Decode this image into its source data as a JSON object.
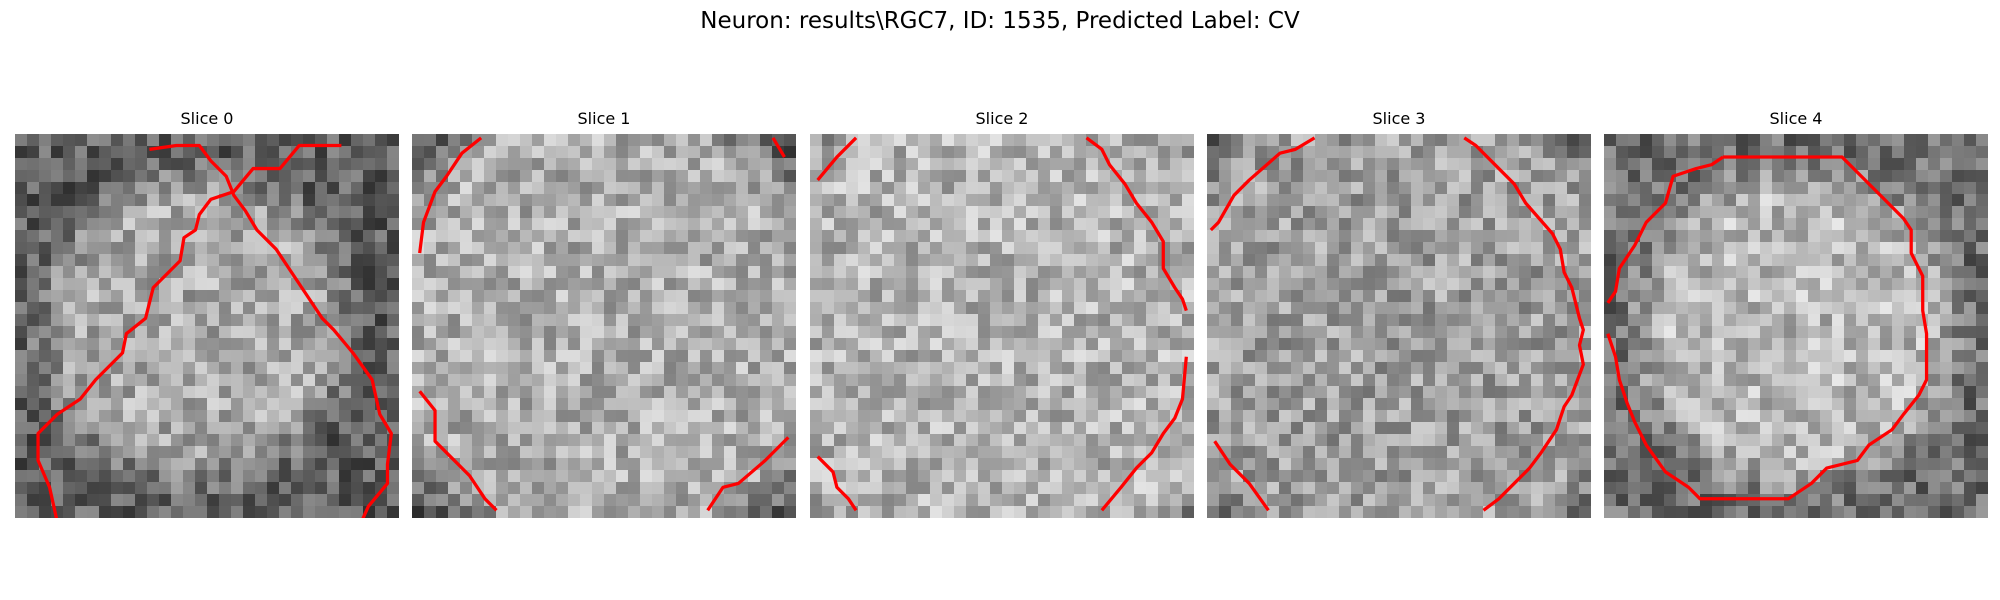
{
  "figure": {
    "suptitle": "Neuron: results\\RGC7, ID: 1535, Predicted Label: CV"
  },
  "contour_color": "#ff0000",
  "panels": [
    {
      "title": "Slice 0",
      "contours": [
        [
          [
            17,
            0.6
          ],
          [
            14.8,
            0.6
          ],
          [
            13.8,
            1.8
          ],
          [
            12.4,
            1.8
          ],
          [
            11.4,
            3
          ],
          [
            10.2,
            3.4
          ],
          [
            9.6,
            4.2
          ],
          [
            9.4,
            5
          ],
          [
            8.8,
            5.4
          ],
          [
            8.6,
            6.6
          ],
          [
            7.2,
            8
          ],
          [
            6.8,
            9.6
          ],
          [
            5.8,
            10.4
          ],
          [
            5.6,
            11.4
          ],
          [
            4.2,
            12.8
          ],
          [
            3.4,
            13.8
          ],
          [
            2.2,
            14.6
          ],
          [
            1.2,
            15.6
          ],
          [
            1.2,
            17
          ],
          [
            1.8,
            18.4
          ],
          [
            2.2,
            20.2
          ],
          [
            3.4,
            21.4
          ],
          [
            4.6,
            22.6
          ],
          [
            6.8,
            23.2
          ],
          [
            7.4,
            24
          ],
          [
            8.2,
            24.4
          ],
          [
            9.2,
            25
          ],
          [
            12,
            25
          ],
          [
            12.6,
            24.4
          ],
          [
            14.8,
            23.4
          ],
          [
            16,
            22.6
          ],
          [
            17.6,
            21.2
          ],
          [
            18.4,
            19.4
          ],
          [
            19.4,
            18.2
          ],
          [
            19.4,
            17.2
          ],
          [
            19.6,
            15.6
          ],
          [
            19,
            14.6
          ],
          [
            18.6,
            12.8
          ],
          [
            17.6,
            11.4
          ],
          [
            16.6,
            10.2
          ],
          [
            16,
            9.6
          ],
          [
            15.2,
            8.4
          ],
          [
            14.4,
            7.2
          ],
          [
            13.6,
            6
          ],
          [
            12.6,
            5
          ],
          [
            12,
            4
          ],
          [
            11.4,
            3.2
          ],
          [
            11,
            2.2
          ],
          [
            10.2,
            1.4
          ],
          [
            9.6,
            0.6
          ],
          [
            8.4,
            0.6
          ],
          [
            7,
            0.8
          ]
        ]
      ]
    },
    {
      "title": "Slice 1",
      "contours": [
        [
          [
            3.6,
            0.2
          ],
          [
            2.6,
            1
          ],
          [
            1.8,
            2.2
          ],
          [
            1.2,
            3
          ],
          [
            0.6,
            4.6
          ],
          [
            0.4,
            6.2
          ]
        ],
        [
          [
            18.8,
            0.2
          ],
          [
            19.4,
            1.2
          ]
        ],
        [
          [
            0.4,
            13.4
          ],
          [
            1.2,
            14.4
          ],
          [
            1.2,
            16
          ],
          [
            2,
            16.8
          ],
          [
            3,
            17.8
          ],
          [
            3.8,
            19
          ],
          [
            4.4,
            19.6
          ]
        ],
        [
          [
            15.4,
            19.6
          ],
          [
            16.2,
            18.4
          ],
          [
            17,
            18.2
          ],
          [
            18.4,
            17
          ],
          [
            19.6,
            15.8
          ]
        ]
      ]
    },
    {
      "title": "Slice 2",
      "contours": [
        [
          [
            2.4,
            0.2
          ],
          [
            1.4,
            1.2
          ],
          [
            0.4,
            2.4
          ]
        ],
        [
          [
            14.4,
            0.2
          ],
          [
            15.2,
            0.8
          ],
          [
            15.6,
            1.6
          ],
          [
            16.4,
            2.6
          ],
          [
            17,
            3.6
          ],
          [
            17.8,
            4.6
          ],
          [
            18.4,
            5.6
          ],
          [
            18.4,
            7
          ],
          [
            19,
            8
          ],
          [
            19.4,
            8.6
          ],
          [
            19.6,
            9.2
          ]
        ],
        [
          [
            0.4,
            16.8
          ],
          [
            1.2,
            17.6
          ],
          [
            1.4,
            18.4
          ],
          [
            2,
            19
          ],
          [
            2.4,
            19.6
          ]
        ],
        [
          [
            15.2,
            19.6
          ],
          [
            16.2,
            18.4
          ],
          [
            17,
            17.4
          ],
          [
            17.8,
            16.6
          ],
          [
            18.4,
            15.6
          ],
          [
            19,
            14.8
          ],
          [
            19.4,
            13.8
          ],
          [
            19.6,
            11.6
          ]
        ]
      ]
    },
    {
      "title": "Slice 3",
      "contours": [
        [
          [
            5.6,
            0.2
          ],
          [
            4.6,
            0.8
          ],
          [
            3.8,
            1
          ],
          [
            2.2,
            2.4
          ],
          [
            1.4,
            3.2
          ],
          [
            0.6,
            4.6
          ],
          [
            0.2,
            5
          ]
        ],
        [
          [
            13.4,
            0.2
          ],
          [
            14,
            0.6
          ],
          [
            15.2,
            1.8
          ],
          [
            16,
            2.6
          ],
          [
            16.6,
            3.6
          ],
          [
            18,
            5.2
          ],
          [
            18.4,
            6
          ],
          [
            18.6,
            7.2
          ],
          [
            19,
            8
          ],
          [
            19.4,
            9.6
          ],
          [
            19.6,
            10.2
          ],
          [
            19.4,
            11
          ],
          [
            19.6,
            12
          ],
          [
            19,
            13.6
          ],
          [
            18.6,
            14.2
          ],
          [
            18.2,
            15.4
          ],
          [
            17.4,
            16.6
          ],
          [
            16.8,
            17.4
          ],
          [
            16,
            18.2
          ],
          [
            15.2,
            19
          ],
          [
            14.4,
            19.6
          ]
        ],
        [
          [
            0.4,
            16
          ],
          [
            1.2,
            17.2
          ],
          [
            2.2,
            18.2
          ],
          [
            3.2,
            19.6
          ]
        ]
      ]
    },
    {
      "title": "Slice 4",
      "contours": [
        [
          [
            6.2,
            1.2
          ],
          [
            12.4,
            1.2
          ],
          [
            13.4,
            2.2
          ],
          [
            14.6,
            3.4
          ],
          [
            15.6,
            4.4
          ],
          [
            16,
            5
          ],
          [
            16,
            6.2
          ],
          [
            16.6,
            7.4
          ],
          [
            16.6,
            9.2
          ],
          [
            16.8,
            10.4
          ],
          [
            16.8,
            12.8
          ],
          [
            16.4,
            13.6
          ],
          [
            15.6,
            14.6
          ],
          [
            15,
            15.4
          ],
          [
            13.8,
            16.2
          ],
          [
            13.2,
            17
          ],
          [
            11.6,
            17.4
          ],
          [
            10.8,
            18.2
          ],
          [
            9.6,
            19
          ],
          [
            5,
            19
          ],
          [
            4.8,
            18.8
          ],
          [
            4.4,
            18.4
          ],
          [
            3.2,
            17.6
          ],
          [
            2.2,
            16.2
          ],
          [
            1.6,
            15
          ],
          [
            1.2,
            14
          ],
          [
            0.8,
            12.8
          ],
          [
            0.6,
            11.6
          ],
          [
            0.2,
            10.4
          ]
        ],
        [
          [
            0.2,
            8.8
          ],
          [
            0.6,
            8.2
          ],
          [
            0.8,
            7
          ],
          [
            1.6,
            5.8
          ],
          [
            2.2,
            4.6
          ],
          [
            3.2,
            3.6
          ],
          [
            3.6,
            2.2
          ],
          [
            4.8,
            1.8
          ],
          [
            5.6,
            1.6
          ],
          [
            6.2,
            1.2
          ]
        ]
      ]
    }
  ]
}
